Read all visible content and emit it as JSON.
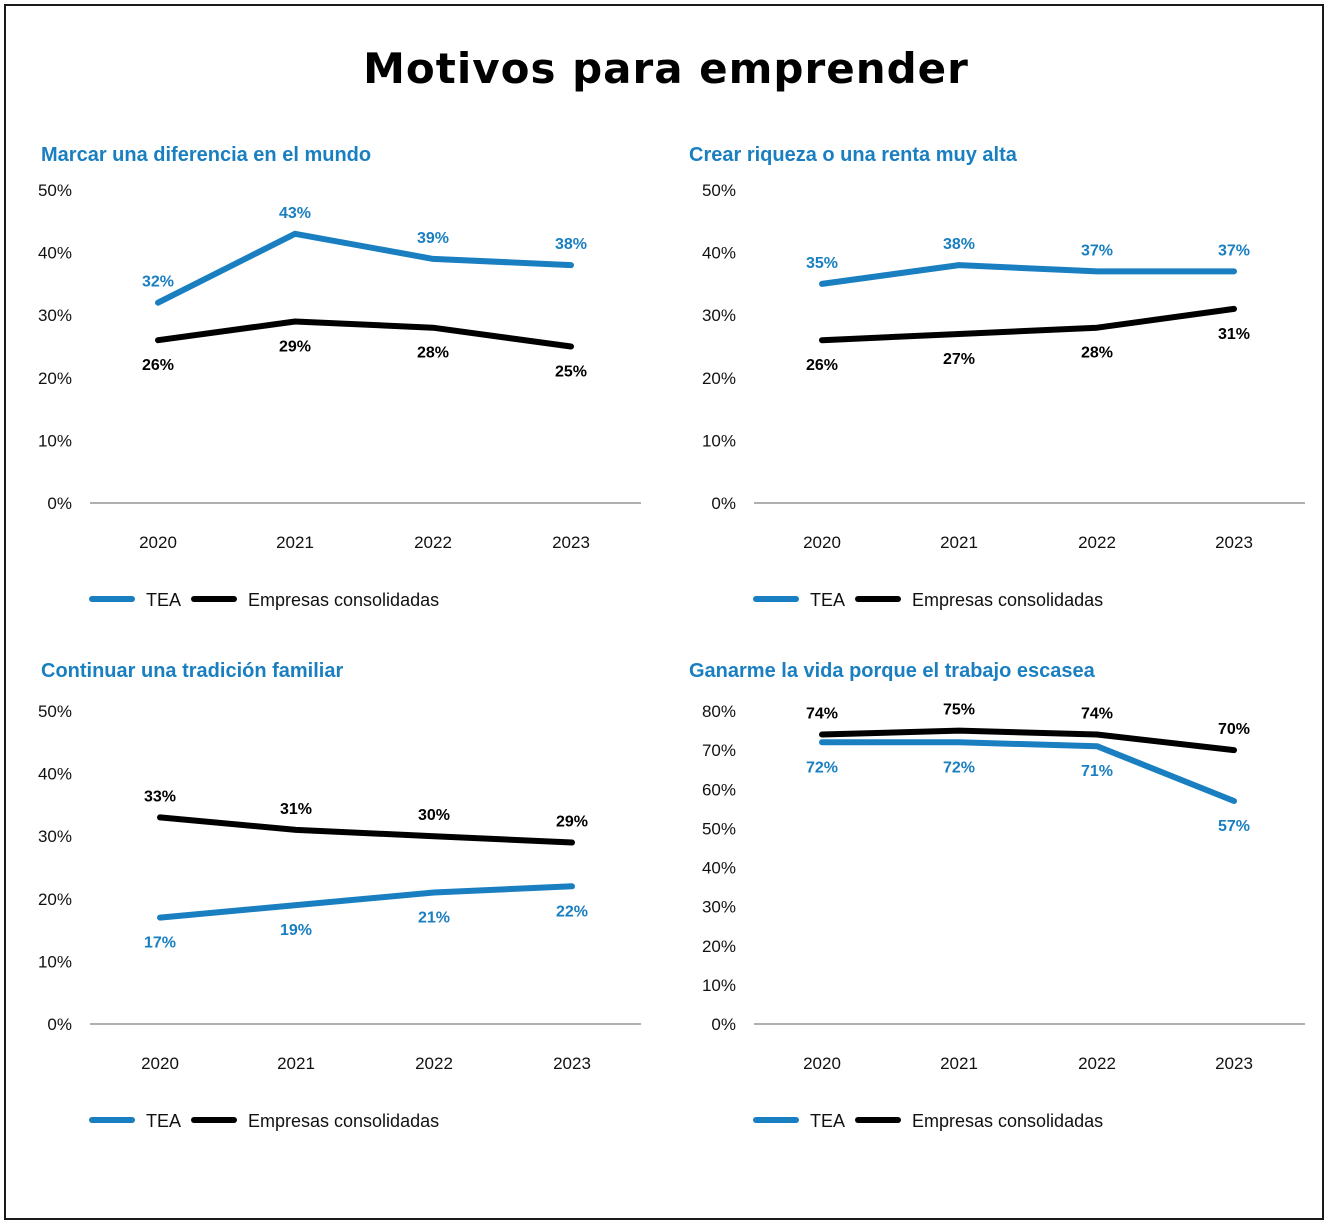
{
  "title": "Motivos para emprender",
  "colors": {
    "tea": "#1a7fc1",
    "consolidadas": "#000000",
    "axis": "#b0b0b0"
  },
  "legend": {
    "tea": "TEA",
    "consolidadas": "Empresas consolidadas"
  },
  "chart_data": [
    {
      "type": "line",
      "title": "Marcar una diferencia en el mundo",
      "categories": [
        "2020",
        "2021",
        "2022",
        "2023"
      ],
      "ylim": [
        0,
        50
      ],
      "yticks": [
        "0%",
        "10%",
        "20%",
        "30%",
        "40%",
        "50%"
      ],
      "series": [
        {
          "name": "TEA",
          "values": [
            32,
            43,
            39,
            38
          ],
          "labels": [
            "32%",
            "43%",
            "39%",
            "38%"
          ]
        },
        {
          "name": "Empresas consolidadas",
          "values": [
            26,
            29,
            28,
            25
          ],
          "labels": [
            "26%",
            "29%",
            "28%",
            "25%"
          ]
        }
      ]
    },
    {
      "type": "line",
      "title": "Crear riqueza o una renta muy alta",
      "categories": [
        "2020",
        "2021",
        "2022",
        "2023"
      ],
      "ylim": [
        0,
        50
      ],
      "yticks": [
        "0%",
        "10%",
        "20%",
        "30%",
        "40%",
        "50%"
      ],
      "series": [
        {
          "name": "TEA",
          "values": [
            35,
            38,
            37,
            37
          ],
          "labels": [
            "35%",
            "38%",
            "37%",
            "37%"
          ]
        },
        {
          "name": "Empresas consolidadas",
          "values": [
            26,
            27,
            28,
            31
          ],
          "labels": [
            "26%",
            "27%",
            "28%",
            "31%"
          ]
        }
      ]
    },
    {
      "type": "line",
      "title": "Continuar una tradición familiar",
      "categories": [
        "2020",
        "2021",
        "2022",
        "2023"
      ],
      "ylim": [
        0,
        50
      ],
      "yticks": [
        "0%",
        "10%",
        "20%",
        "30%",
        "40%",
        "50%"
      ],
      "series": [
        {
          "name": "TEA",
          "values": [
            17,
            19,
            21,
            22
          ],
          "labels": [
            "17%",
            "19%",
            "21%",
            "22%"
          ]
        },
        {
          "name": "Empresas consolidadas",
          "values": [
            33,
            31,
            30,
            29
          ],
          "labels": [
            "33%",
            "31%",
            "30%",
            "29%"
          ]
        }
      ]
    },
    {
      "type": "line",
      "title": "Ganarme la vida porque el trabajo escasea",
      "categories": [
        "2020",
        "2021",
        "2022",
        "2023"
      ],
      "ylim": [
        0,
        80
      ],
      "yticks": [
        "0%",
        "10%",
        "20%",
        "30%",
        "40%",
        "50%",
        "60%",
        "70%",
        "80%"
      ],
      "series": [
        {
          "name": "TEA",
          "values": [
            72,
            72,
            71,
            57
          ],
          "labels": [
            "72%",
            "72%",
            "71%",
            "57%"
          ]
        },
        {
          "name": "Empresas consolidadas",
          "values": [
            74,
            75,
            74,
            70
          ],
          "labels": [
            "74%",
            "75%",
            "74%",
            "70%"
          ]
        }
      ]
    }
  ]
}
